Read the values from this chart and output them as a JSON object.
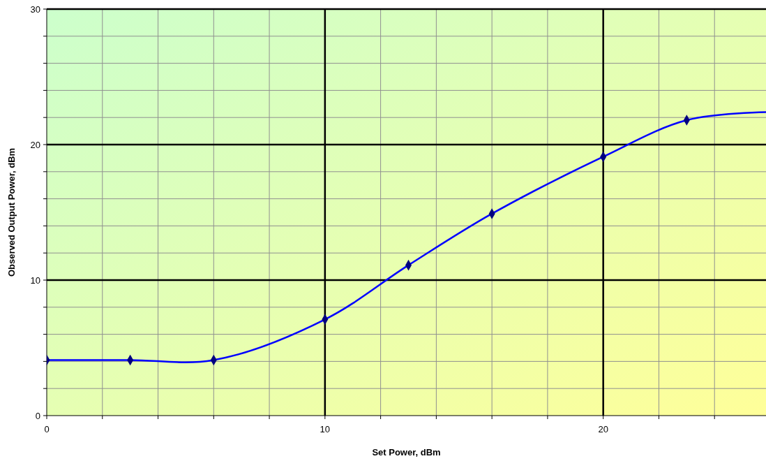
{
  "chart_data": {
    "type": "line",
    "xlabel": "Set Power, dBm",
    "ylabel": "Observed Output Power, dBm",
    "xlim": [
      0,
      25.85
    ],
    "ylim": [
      0,
      30
    ],
    "xticks": [
      0,
      {
        "value": 2,
        "label": null
      },
      {
        "value": 4,
        "label": null
      },
      {
        "value": 6,
        "label": null
      },
      {
        "value": 8,
        "label": null
      },
      10,
      {
        "value": 12,
        "label": null
      },
      {
        "value": 14,
        "label": null
      },
      {
        "value": 16,
        "label": null
      },
      {
        "value": 18,
        "label": null
      },
      20,
      {
        "value": 22,
        "label": null
      },
      {
        "value": 24,
        "label": null
      }
    ],
    "yticks": [
      0,
      {
        "value": 2,
        "label": null
      },
      {
        "value": 4,
        "label": null
      },
      {
        "value": 6,
        "label": null
      },
      {
        "value": 8,
        "label": null
      },
      10,
      {
        "value": 12,
        "label": null
      },
      {
        "value": 14,
        "label": null
      },
      {
        "value": 16,
        "label": null
      },
      {
        "value": 18,
        "label": null
      },
      20,
      {
        "value": 22,
        "label": null
      },
      {
        "value": 24,
        "label": null
      },
      {
        "value": 26,
        "label": null
      },
      {
        "value": 28,
        "label": null
      },
      30
    ],
    "grid": true,
    "series": [
      {
        "color": "#0000ff",
        "marker": "none",
        "x": [
          0,
          3,
          6,
          10,
          13,
          16,
          20,
          23,
          25.85
        ],
        "values": [
          4.1,
          4.1,
          4.1,
          7.1,
          11.1,
          14.9,
          19.1,
          21.8,
          22.4
        ]
      },
      {
        "type": "scatter",
        "color": "#000080",
        "marker": "diamond",
        "x": [
          0,
          3,
          6,
          10,
          13,
          16,
          20,
          23
        ],
        "values": [
          4.1,
          4.1,
          4.1,
          7.1,
          11.1,
          14.9,
          19.1,
          21.8
        ]
      }
    ]
  }
}
